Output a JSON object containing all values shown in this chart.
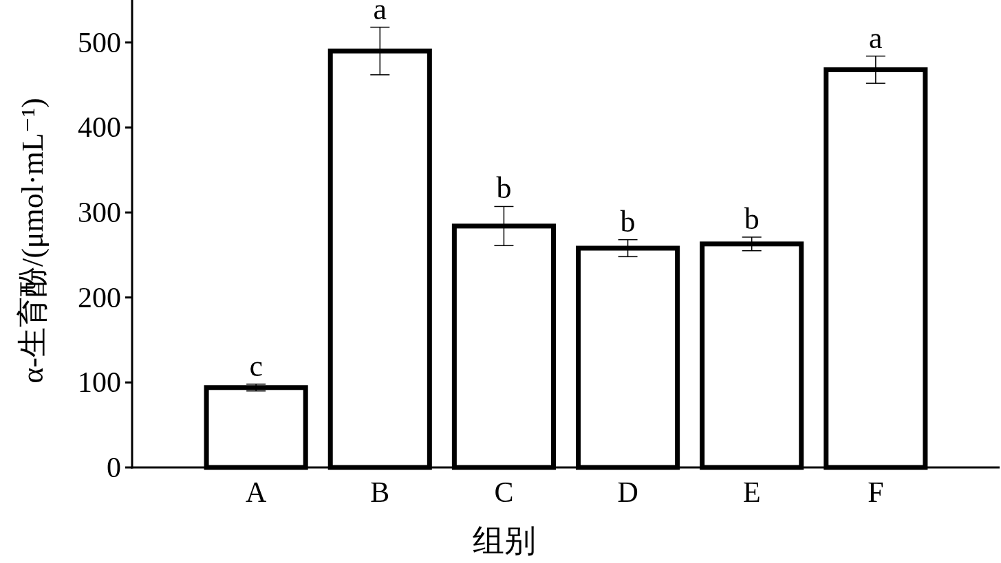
{
  "chart_data": {
    "type": "bar",
    "xlabel": "组别",
    "ylabel": "α-生育酚/(μmol·mL⁻¹)",
    "categories": [
      "A",
      "B",
      "C",
      "D",
      "E",
      "F"
    ],
    "values": [
      94,
      490,
      284,
      258,
      263,
      468
    ],
    "errors": [
      4,
      28,
      23,
      10,
      8,
      16
    ],
    "color": "#ffffff",
    "ylim": [
      0,
      550
    ],
    "yticks": [
      0,
      100,
      200,
      300,
      400,
      500
    ],
    "annotations": [
      {
        "text": "c",
        "x": "A",
        "y": 98
      },
      {
        "text": "a",
        "x": "B",
        "y": 518
      },
      {
        "text": "b",
        "x": "C",
        "y": 307
      },
      {
        "text": "b",
        "x": "D",
        "y": 268
      },
      {
        "text": "b",
        "x": "E",
        "y": 271
      },
      {
        "text": "a",
        "x": "F",
        "y": 484
      }
    ]
  }
}
